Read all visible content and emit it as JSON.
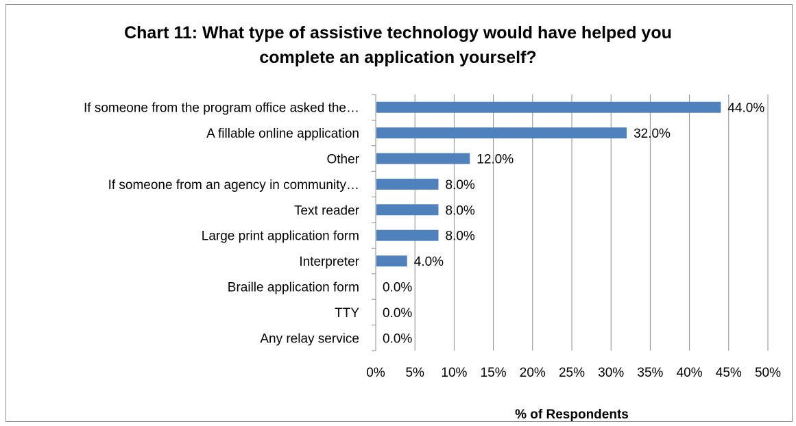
{
  "chart_data": {
    "type": "bar",
    "orientation": "horizontal",
    "title_line1": "Chart 11: What type of assistive technology would have helped you",
    "title_line2": "complete an application yourself?",
    "xlabel": "% of Respondents",
    "ylabel": "",
    "xlim": [
      0,
      50
    ],
    "xticks": [
      "0%",
      "5%",
      "10%",
      "15%",
      "20%",
      "25%",
      "30%",
      "35%",
      "40%",
      "45%",
      "50%"
    ],
    "grid": true,
    "legend": "none",
    "bar_color": "#4f81bd",
    "categories": [
      "If someone from the program office asked the…",
      "A fillable online application",
      "Other",
      "If someone from an agency in community…",
      "Text reader",
      "Large print application form",
      "Interpreter",
      "Braille application form",
      "TTY",
      "Any relay service"
    ],
    "values": [
      44.0,
      32.0,
      12.0,
      8.0,
      8.0,
      8.0,
      4.0,
      0.0,
      0.0,
      0.0
    ],
    "data_labels": [
      "44.0%",
      "32.0%",
      "12.0%",
      "8.0%",
      "8.0%",
      "8.0%",
      "4.0%",
      "0.0%",
      "0.0%",
      "0.0%"
    ]
  }
}
